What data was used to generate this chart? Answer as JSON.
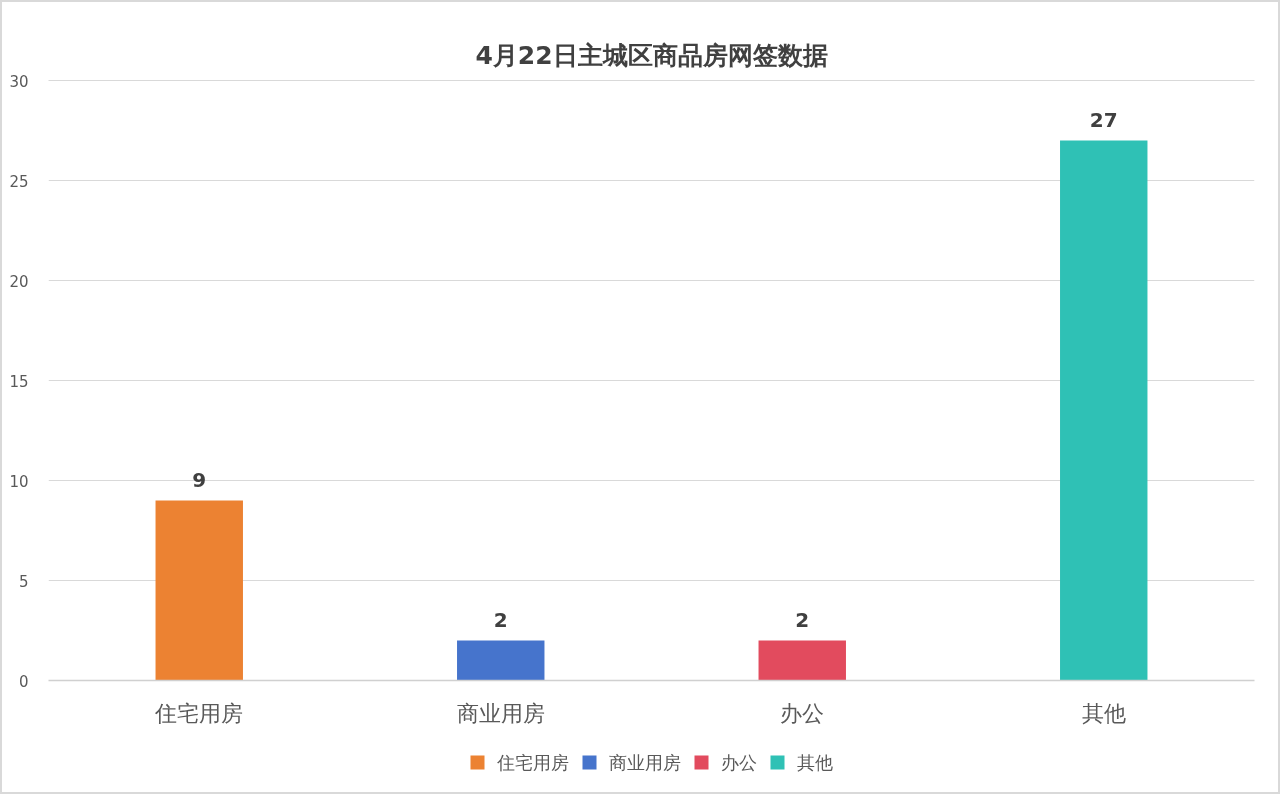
{
  "chart_data": {
    "type": "bar",
    "title": "4月22日主城区商品房网签数据",
    "categories": [
      "住宅用房",
      "商业用房",
      "办公",
      "其他"
    ],
    "stacked": true,
    "series": [
      {
        "name": "住宅用房",
        "color": "#ec8232",
        "values": [
          9,
          null,
          null,
          null
        ]
      },
      {
        "name": "商业用房",
        "color": "#4674cc",
        "values": [
          null,
          2,
          null,
          null
        ]
      },
      {
        "name": "办公",
        "color": "#e24b5e",
        "values": [
          null,
          null,
          2,
          null
        ]
      },
      {
        "name": "其他",
        "color": "#2fc1b5",
        "values": [
          null,
          null,
          null,
          27
        ]
      }
    ],
    "ylim": [
      0,
      30
    ],
    "yticks": [
      0,
      5,
      10,
      15,
      20,
      25,
      30
    ],
    "grid": "y",
    "data_labels": true,
    "legend": "bottom"
  }
}
